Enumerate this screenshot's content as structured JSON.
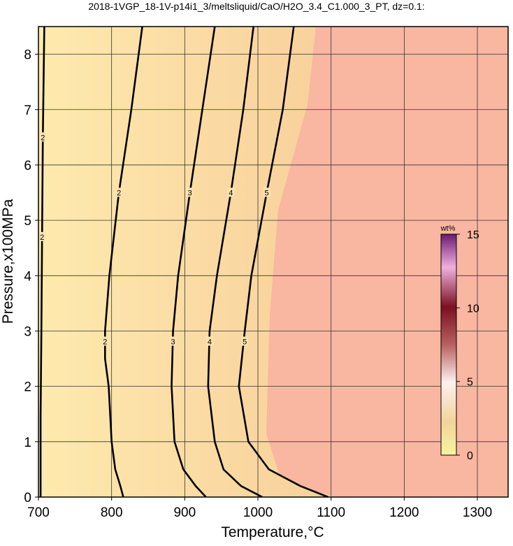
{
  "chart_data": {
    "type": "contour",
    "title": "2018-1VGP_18-1V-p14i1_3/meltsliquid/CaO/H2O_3.4_C1.000_3_PT, dz=0.1:",
    "x_label": "Temperature,°C",
    "y_label": "Pressure,x100MPa",
    "xlim": [
      700,
      1342
    ],
    "ylim": [
      0,
      8.5
    ],
    "xticks": [
      700,
      800,
      900,
      1000,
      1100,
      1200,
      1300
    ],
    "yticks": [
      0,
      1,
      2,
      3,
      4,
      5,
      6,
      7,
      8
    ],
    "grid": true,
    "contours": [
      {
        "level": 2,
        "x": [
          708,
          706,
          705,
          704,
          703,
          703
        ],
        "y": [
          8.5,
          6.5,
          4.7,
          3,
          1.5,
          0
        ]
      },
      {
        "level": 2,
        "x": [
          842,
          827,
          810,
          797,
          791,
          791,
          796,
          800,
          805,
          812,
          816
        ],
        "y": [
          8.5,
          7,
          5.5,
          4,
          3,
          2.5,
          2,
          1,
          0.5,
          0.2,
          0
        ]
      },
      {
        "level": 3,
        "x": [
          941,
          924,
          907,
          891,
          884,
          882,
          886,
          898,
          915,
          929
        ],
        "y": [
          8.5,
          7,
          5.5,
          4,
          3,
          2,
          1,
          0.5,
          0.2,
          0
        ]
      },
      {
        "level": 4,
        "x": [
          994,
          980,
          963,
          944,
          934,
          932,
          941,
          953,
          977,
          1006
        ],
        "y": [
          8.5,
          7,
          5.5,
          4,
          3,
          2,
          1,
          0.5,
          0.2,
          0
        ]
      },
      {
        "level": 5,
        "x": [
          1049,
          1034,
          1012,
          991,
          982,
          974,
          987,
          1015,
          1058,
          1096
        ],
        "y": [
          8.5,
          7,
          5.5,
          4,
          3,
          2,
          1,
          0.5,
          0.2,
          0
        ]
      }
    ],
    "colorbar": {
      "label": "wt%",
      "lim": [
        0,
        15
      ],
      "ticks": [
        0,
        5,
        10,
        15
      ]
    }
  }
}
